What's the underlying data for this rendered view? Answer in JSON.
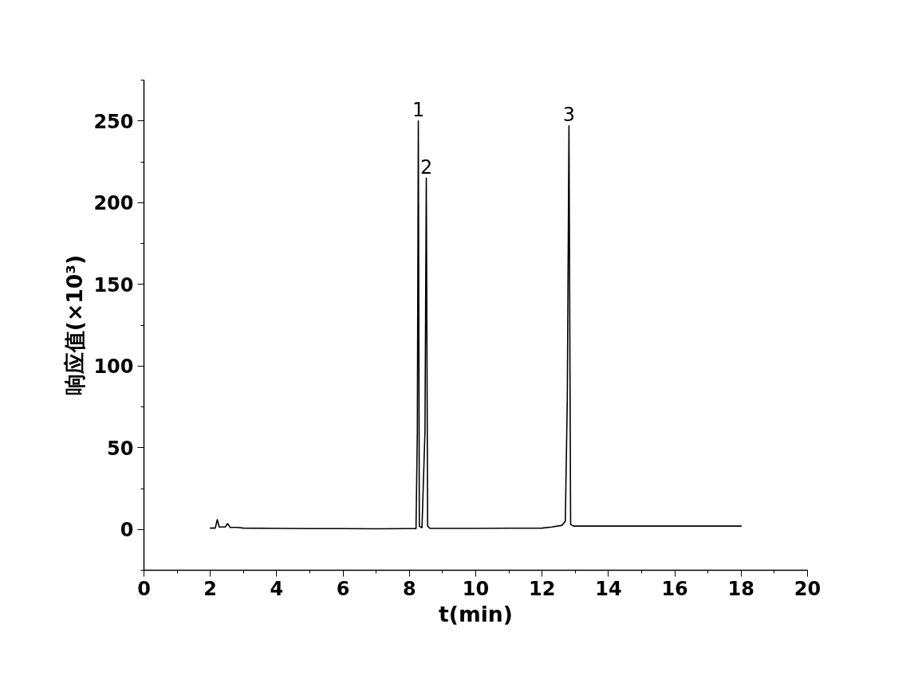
{
  "chart_data": {
    "type": "line",
    "xlabel": "t(min)",
    "ylabel": "响应值(×10³)",
    "xlim": [
      0,
      20
    ],
    "xticks": [
      0,
      2,
      4,
      6,
      8,
      10,
      12,
      14,
      16,
      18,
      20
    ],
    "ylim": [
      -25,
      275
    ],
    "yticks": [
      0,
      50,
      100,
      150,
      200,
      250
    ],
    "grid": false,
    "marker": "none",
    "line_style": "solid",
    "series": [
      {
        "color": "#000000",
        "x": [
          2.0,
          2.15,
          2.21,
          2.27,
          2.45,
          2.52,
          2.6,
          2.8,
          3.0,
          4,
          5,
          6,
          7,
          8,
          8.2,
          8.24,
          8.27,
          8.3,
          8.38,
          8.47,
          8.51,
          8.55,
          8.62,
          9,
          10,
          11,
          12,
          12.3,
          12.6,
          12.7,
          12.76,
          12.81,
          12.86,
          12.95,
          13.5,
          14,
          15,
          16,
          17,
          18
        ],
        "values": [
          0.8,
          0.8,
          6,
          1.5,
          1.5,
          3.5,
          1.2,
          1.2,
          0.8,
          0.6,
          0.5,
          0.5,
          0.4,
          0.5,
          0.5,
          60,
          250,
          2,
          1,
          60,
          215,
          2,
          0.6,
          0.6,
          0.6,
          0.7,
          0.8,
          1.5,
          2.5,
          5,
          80,
          247,
          3,
          2,
          2,
          2,
          2,
          2,
          2,
          2
        ]
      }
    ],
    "annotations": [
      {
        "text": "1",
        "x": 8.27,
        "y": 250
      },
      {
        "text": "2",
        "x": 8.51,
        "y": 215
      },
      {
        "text": "3",
        "x": 12.81,
        "y": 247
      }
    ]
  }
}
